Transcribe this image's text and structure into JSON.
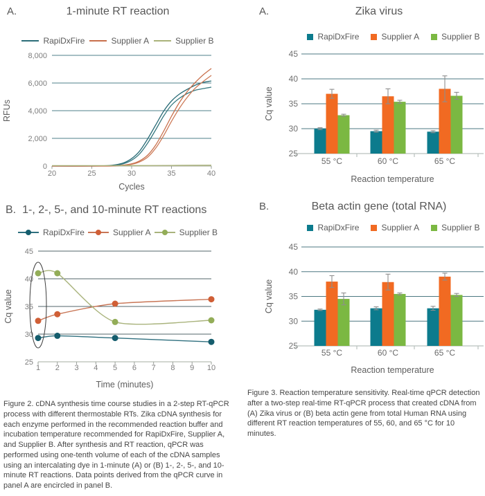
{
  "captions": {
    "figure2": "Figure 2. cDNA synthesis time course studies in a 2-step RT-qPCR process with different thermostable RTs. Zika cDNA synthesis for each enzyme performed in the recommended reaction buffer and incubation temperature recommended for RapiDxFire, Supplier A, and Supplier B. After synthesis and RT reaction, qPCR was performed using one-tenth volume of each of the cDNA samples using an intercalating dye in 1-minute (A) or (B) 1-, 2-, 5-, and 10-minute RT reactions. Data points derived from the qPCR curve in panel A are encircled in panel B.",
    "figure3": "Figure 3. Reaction temperature sensitivity. Real-time qPCR detection after a two-step real-time RT-qPCR process that created cDNA from (A) Zika virus or (B) beta actin gene from total Human RNA using different RT reaction temperatures of 55, 60, and 65 °C for 10 minutes."
  },
  "chart_data": [
    {
      "id": "fig2a",
      "panel_label": "A.",
      "title": "1-minute RT reaction",
      "type": "line",
      "xlabel": "Cycles",
      "ylabel": "RFUs",
      "xlim": [
        20,
        40
      ],
      "ylim": [
        0,
        8000
      ],
      "xticks": [
        20,
        25,
        30,
        35,
        40
      ],
      "yticks": [
        0,
        2000,
        4000,
        6000,
        8000
      ],
      "ytick_labels": [
        "0",
        "2,000",
        "4,000",
        "6,000",
        "8,000"
      ],
      "grid_color": "#4d7f88",
      "axis_color": "#b0b5a4",
      "markers": false,
      "series": [
        {
          "name": "RapiDxFire",
          "color": "#2a6c77",
          "in_legend": true,
          "points": [
            [
              20,
              0
            ],
            [
              25,
              0
            ],
            [
              27,
              30
            ],
            [
              28,
              90
            ],
            [
              29,
              230
            ],
            [
              30,
              540
            ],
            [
              31,
              1080
            ],
            [
              32,
              1950
            ],
            [
              33,
              2950
            ],
            [
              34,
              3950
            ],
            [
              35,
              4700
            ],
            [
              36,
              5200
            ],
            [
              37,
              5550
            ],
            [
              38,
              5850
            ],
            [
              39,
              6050
            ],
            [
              40,
              6150
            ]
          ]
        },
        {
          "name": "RapiDxFire replicate",
          "color": "#35787f",
          "in_legend": false,
          "points": [
            [
              20,
              0
            ],
            [
              25,
              0
            ],
            [
              27,
              20
            ],
            [
              28,
              60
            ],
            [
              29,
              170
            ],
            [
              30,
              420
            ],
            [
              31,
              880
            ],
            [
              32,
              1650
            ],
            [
              33,
              2600
            ],
            [
              34,
              3600
            ],
            [
              35,
              4400
            ],
            [
              36,
              4900
            ],
            [
              37,
              5250
            ],
            [
              38,
              5480
            ],
            [
              39,
              5600
            ],
            [
              40,
              5700
            ]
          ]
        },
        {
          "name": "Supplier A",
          "color": "#c86f4b",
          "in_legend": true,
          "points": [
            [
              20,
              0
            ],
            [
              27,
              0
            ],
            [
              28,
              25
            ],
            [
              29,
              70
            ],
            [
              30,
              160
            ],
            [
              31,
              370
            ],
            [
              32,
              780
            ],
            [
              33,
              1500
            ],
            [
              34,
              2500
            ],
            [
              35,
              3600
            ],
            [
              36,
              4600
            ],
            [
              37,
              5400
            ],
            [
              38,
              6050
            ],
            [
              39,
              6600
            ],
            [
              40,
              7050
            ]
          ]
        },
        {
          "name": "Supplier A replicate",
          "color": "#cd7a57",
          "in_legend": false,
          "points": [
            [
              20,
              0
            ],
            [
              27,
              0
            ],
            [
              28,
              18
            ],
            [
              29,
              50
            ],
            [
              30,
              125
            ],
            [
              31,
              300
            ],
            [
              32,
              640
            ],
            [
              33,
              1280
            ],
            [
              34,
              2180
            ],
            [
              35,
              3230
            ],
            [
              36,
              4180
            ],
            [
              37,
              4980
            ],
            [
              38,
              5640
            ],
            [
              39,
              6120
            ],
            [
              40,
              6550
            ]
          ]
        },
        {
          "name": "Supplier B",
          "color": "#a9b279",
          "in_legend": true,
          "points": [
            [
              20,
              30
            ],
            [
              25,
              30
            ],
            [
              30,
              35
            ],
            [
              35,
              45
            ],
            [
              40,
              60
            ]
          ]
        }
      ]
    },
    {
      "id": "fig2b",
      "panel_label": "B.",
      "title": "1-, 2-, 5-, and 10-minute RT reactions",
      "type": "line",
      "xlabel": "Time (minutes)",
      "ylabel": "Cq value",
      "xlim": [
        1,
        10
      ],
      "ylim": [
        25,
        45
      ],
      "xticks": [
        1,
        2,
        3,
        4,
        5,
        6,
        7,
        8,
        9,
        10
      ],
      "yticks": [
        25,
        30,
        35,
        40,
        45
      ],
      "ytick_labels": [
        "25",
        "30",
        "35",
        "40",
        "45"
      ],
      "grid_color": "#52656a",
      "axis_color": "#b7bdb3",
      "markers": true,
      "annotation": {
        "type": "ellipse",
        "at_x": 1,
        "meaning": "1-minute data points from panel A encircled"
      },
      "series": [
        {
          "name": "RapiDxFire",
          "color": "#2e6f7e",
          "marker_color": "#155d6d",
          "in_legend": true,
          "points": [
            [
              1,
              29.3
            ],
            [
              2,
              29.7
            ],
            [
              5,
              29.3
            ],
            [
              10,
              28.6
            ]
          ]
        },
        {
          "name": "Supplier A",
          "color": "#c87555",
          "marker_color": "#d05f36",
          "in_legend": true,
          "points": [
            [
              1,
              32.4
            ],
            [
              2,
              33.6
            ],
            [
              5,
              35.5
            ],
            [
              10,
              36.3
            ]
          ]
        },
        {
          "name": "Supplier B",
          "color": "#a9b37c",
          "marker_color": "#93ad58",
          "in_legend": true,
          "points": [
            [
              1,
              41.0
            ],
            [
              2,
              41.0
            ],
            [
              5,
              32.2
            ],
            [
              10,
              32.5
            ]
          ]
        }
      ]
    },
    {
      "id": "fig3a",
      "panel_label": "A.",
      "title": "Zika virus",
      "type": "bar",
      "xlabel": "Reaction temperature",
      "ylabel": "Cq value",
      "ylim": [
        25,
        45
      ],
      "yticks": [
        25,
        30,
        35,
        40,
        45
      ],
      "ytick_labels": [
        "25",
        "30",
        "35",
        "40",
        "45"
      ],
      "categories": [
        "55 °C",
        "60 °C",
        "65 °C"
      ],
      "grid_color": "#4b7780",
      "axis_color": "#b9c0bd",
      "error_color": "#8e8e8e",
      "series": [
        {
          "name": "RapiDxFire",
          "color": "#0c7b8d",
          "values": [
            30.0,
            29.5,
            29.4
          ],
          "errors": [
            0.2,
            0.2,
            0.2
          ]
        },
        {
          "name": "Supplier A",
          "color": "#f16a22",
          "values": [
            37.0,
            36.5,
            38.0
          ],
          "errors": [
            0.9,
            1.5,
            2.6
          ]
        },
        {
          "name": "Supplier B",
          "color": "#7bb842",
          "values": [
            32.7,
            35.4,
            36.6
          ],
          "errors": [
            0.2,
            0.3,
            0.7
          ]
        }
      ]
    },
    {
      "id": "fig3b",
      "panel_label": "B.",
      "title": "Beta actin gene (total RNA)",
      "type": "bar",
      "xlabel": "Reaction temperature",
      "ylabel": "Cq value",
      "ylim": [
        25,
        45
      ],
      "yticks": [
        25,
        30,
        35,
        40,
        45
      ],
      "ytick_labels": [
        "25",
        "30",
        "35",
        "40",
        "45"
      ],
      "categories": [
        "55 °C",
        "60 °C",
        "65 °C"
      ],
      "grid_color": "#4b7780",
      "axis_color": "#b9c0bd",
      "error_color": "#8e8e8e",
      "series": [
        {
          "name": "RapiDxFire",
          "color": "#0c7b8d",
          "values": [
            32.3,
            32.6,
            32.6
          ],
          "errors": [
            0.15,
            0.3,
            0.4
          ]
        },
        {
          "name": "Supplier A",
          "color": "#f16a22",
          "values": [
            38.0,
            37.9,
            39.0
          ],
          "errors": [
            1.2,
            1.6,
            0.7
          ]
        },
        {
          "name": "Supplier B",
          "color": "#7bb842",
          "values": [
            34.5,
            35.5,
            35.3
          ],
          "errors": [
            1.2,
            0.2,
            0.3
          ]
        }
      ]
    }
  ]
}
